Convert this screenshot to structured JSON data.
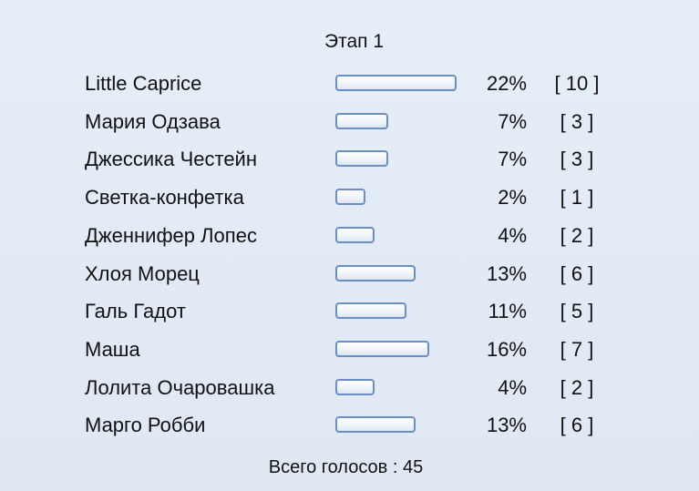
{
  "poll": {
    "title": "Этап 1",
    "total_label": "Всего голосов : 45",
    "bar_color": "#6a8fc4",
    "items": [
      {
        "name": "Little Caprice",
        "percent": "22%",
        "count": "[ 10 ]",
        "value": 22
      },
      {
        "name": "Мария Одзава",
        "percent": "7%",
        "count": "[ 3 ]",
        "value": 7
      },
      {
        "name": "Джессика Честейн",
        "percent": "7%",
        "count": "[ 3 ]",
        "value": 7
      },
      {
        "name": "Светка-конфетка",
        "percent": "2%",
        "count": "[ 1 ]",
        "value": 2
      },
      {
        "name": "Дженнифер Лопес",
        "percent": "4%",
        "count": "[ 2 ]",
        "value": 4
      },
      {
        "name": "Хлоя Морец",
        "percent": "13%",
        "count": "[ 6 ]",
        "value": 13
      },
      {
        "name": "Галь Гадот",
        "percent": "11%",
        "count": "[ 5 ]",
        "value": 11
      },
      {
        "name": "Маша",
        "percent": "16%",
        "count": "[ 7 ]",
        "value": 16
      },
      {
        "name": "Лолита Очаровашка",
        "percent": "4%",
        "count": "[ 2 ]",
        "value": 4
      },
      {
        "name": "Марго Робби",
        "percent": "13%",
        "count": "[ 6 ]",
        "value": 13
      }
    ]
  }
}
